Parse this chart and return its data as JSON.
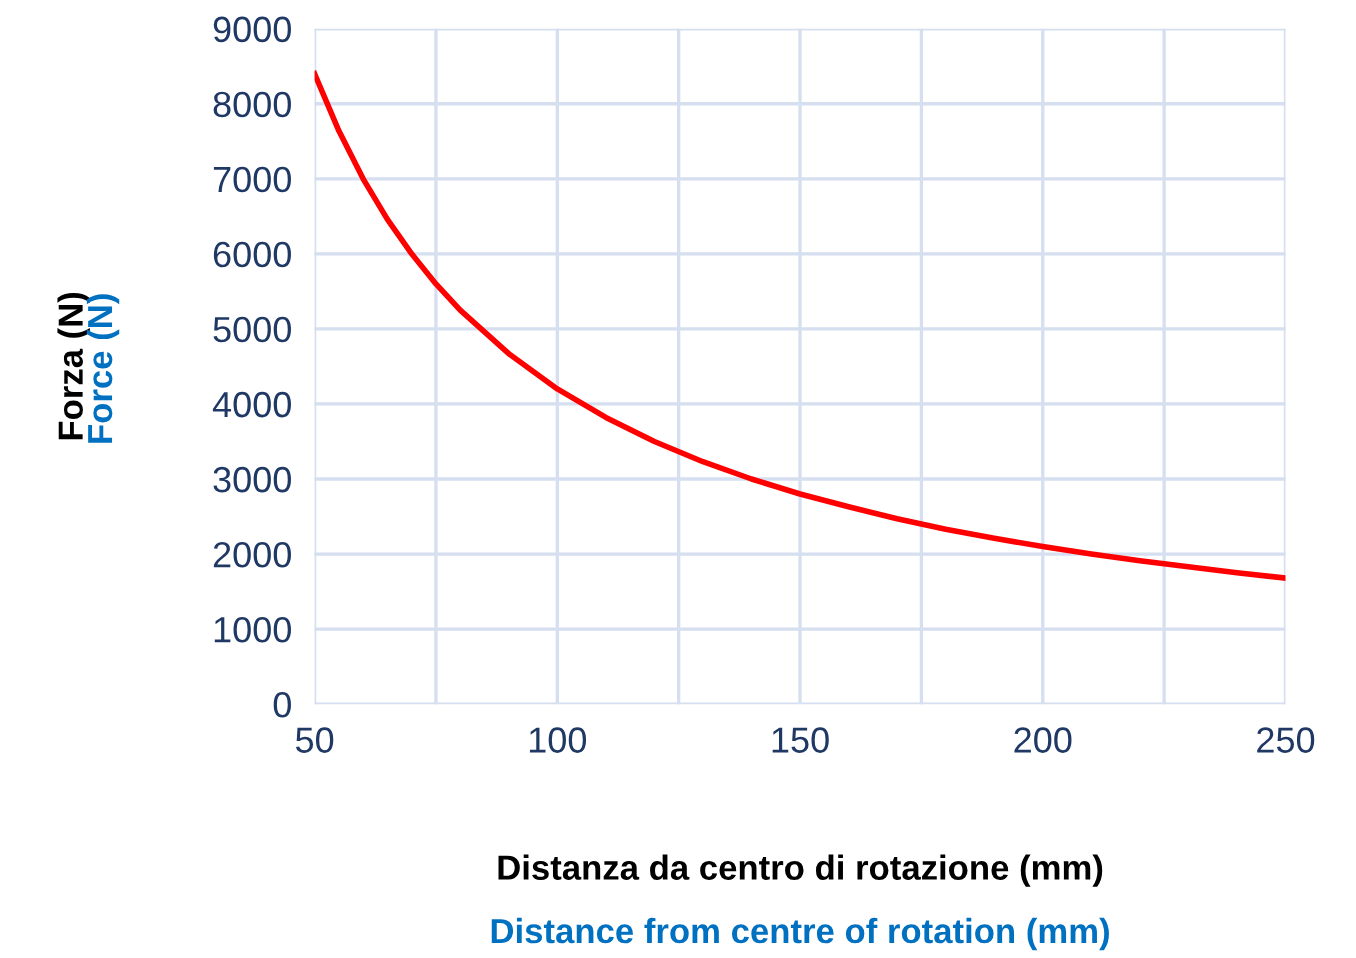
{
  "chart_data": {
    "type": "line",
    "xlabel": "Distanza da centro di rotazione (mm)",
    "ylabel": "Forza (N)",
    "annotations": [
      "Distance from centre of rotation (mm)",
      "Force (N)"
    ],
    "x": [
      50,
      55,
      60,
      65,
      70,
      75,
      80,
      90,
      100,
      110,
      120,
      130,
      140,
      150,
      160,
      170,
      180,
      190,
      200,
      210,
      220,
      230,
      240,
      250
    ],
    "series": [
      {
        "color": "#ff0000",
        "values": [
          8400,
          7640,
          7000,
          6460,
          6000,
          5600,
          5250,
          4670,
          4200,
          3820,
          3500,
          3230,
          3000,
          2800,
          2630,
          2470,
          2330,
          2210,
          2100,
          2000,
          1910,
          1830,
          1750,
          1680
        ]
      }
    ],
    "xlim": [
      50,
      250
    ],
    "xticks": [
      50,
      {
        "value": 75,
        "label": null
      },
      100,
      {
        "value": 125,
        "label": null
      },
      150,
      {
        "value": 175,
        "label": null
      },
      200,
      {
        "value": 225,
        "label": null
      },
      250
    ],
    "ylim": [
      0,
      9000
    ],
    "yticks": [
      0,
      1000,
      2000,
      3000,
      4000,
      5000,
      6000,
      7000,
      8000,
      9000
    ],
    "grid": true,
    "marker": "none",
    "line_style": "solid"
  }
}
